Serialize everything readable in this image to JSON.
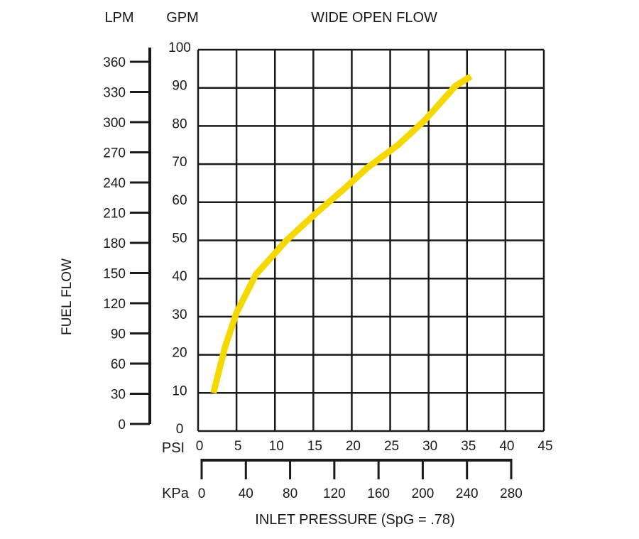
{
  "chart_data": {
    "type": "line",
    "title": "WIDE OPEN FLOW",
    "ylabel": "FUEL FLOW",
    "xlabel": "INLET PRESSURE (SpG = .78)",
    "grid": true,
    "axes": {
      "lpm": {
        "label": "LPM",
        "ticks": [
          "0",
          "30",
          "60",
          "90",
          "120",
          "150",
          "180",
          "210",
          "240",
          "270",
          "300",
          "330",
          "360"
        ]
      },
      "gpm": {
        "label": "GPM",
        "ticks": [
          "0",
          "10",
          "20",
          "30",
          "40",
          "50",
          "60",
          "70",
          "80",
          "90",
          "100"
        ],
        "ylim": [
          0,
          100
        ]
      },
      "psi": {
        "label": "PSI",
        "ticks": [
          "0",
          "5",
          "10",
          "15",
          "20",
          "25",
          "30",
          "35",
          "40",
          "45"
        ],
        "xlim": [
          0,
          45
        ]
      },
      "kpa": {
        "label": "KPa",
        "ticks": [
          "0",
          "40",
          "80",
          "120",
          "160",
          "200",
          "240",
          "280"
        ]
      }
    },
    "series": [
      {
        "color": "#f5d800",
        "x": [
          2,
          3.5,
          5,
          7.5,
          11.5,
          15,
          19,
          22,
          26,
          29.5,
          31.5,
          33.5,
          35.5
        ],
        "y": [
          10,
          22,
          31,
          41,
          50,
          56.5,
          63.5,
          69,
          75,
          81.5,
          86,
          90.5,
          93
        ]
      }
    ]
  }
}
